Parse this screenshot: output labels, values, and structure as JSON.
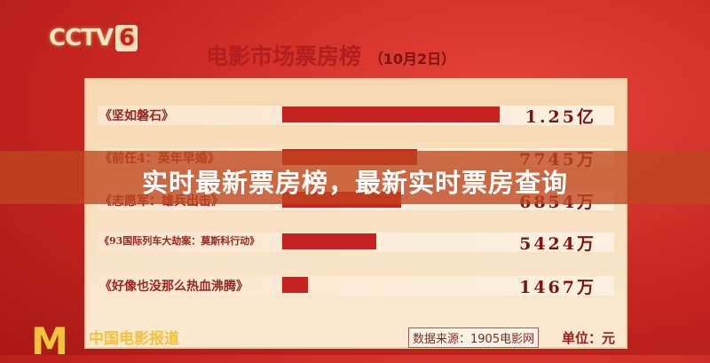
{
  "channel_logo": "CCTV 6",
  "header": {
    "title": "电影市场票房榜",
    "date": "（10月2日）"
  },
  "chart_data": {
    "type": "bar",
    "orientation": "horizontal",
    "title": "电影市场票房榜（10月2日）",
    "categories": [
      "《坚如磐石》",
      "《前任4：英年早婚》",
      "《志愿军：雄兵出击》",
      "《93国际列车大劫案：莫斯科行动》",
      "《好像也没那么热血沸腾》"
    ],
    "values": [
      125000000,
      77450000,
      68540000,
      54240000,
      14670000
    ],
    "value_labels": [
      "1.25亿",
      "7745万",
      "6854万",
      "5424万",
      "1467万"
    ],
    "bar_color": "#c62222",
    "unit": "单位：元",
    "source": "数据来源：1905电影网"
  },
  "overlay": {
    "headline": "实时最新票房榜，最新实时票房查询"
  },
  "footer": {
    "brand": "中国电影报道",
    "source": "数据来源：1905电影网",
    "unit": "单位：元"
  }
}
